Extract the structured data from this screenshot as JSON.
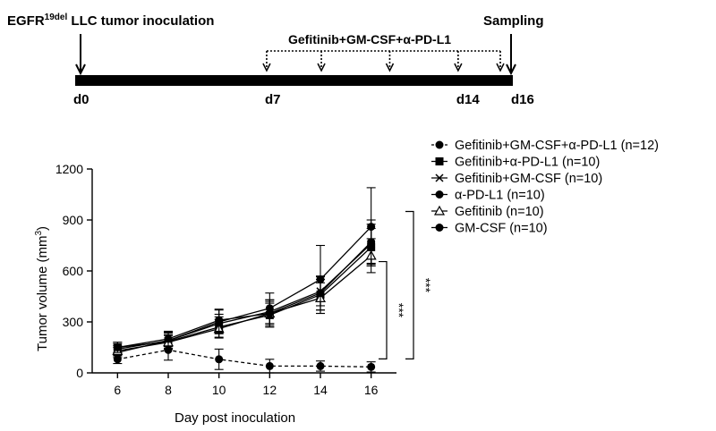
{
  "timeline": {
    "title_main": "EGFR",
    "title_sup": "19del",
    "title_rest": " LLC tumor inoculation",
    "sampling_label": "Sampling",
    "treatment_label": "Gefitinib+GM-CSF+α-PD-L1",
    "day_labels": [
      "d0",
      "d7",
      "d14",
      "d16"
    ],
    "day_values": [
      0,
      7,
      14,
      16
    ],
    "treatment_days": [
      7,
      9,
      11.5,
      14,
      16
    ],
    "inoculation_day": 0,
    "sampling_day": 16
  },
  "chart_data": {
    "type": "line",
    "title": "",
    "xlabel": "Day post inoculation",
    "ylabel_main": "Tumor volume (mm",
    "ylabel_sup": "3",
    "ylabel_end": ")",
    "xlim": [
      5,
      17
    ],
    "ylim": [
      0,
      1200
    ],
    "x": [
      6,
      8,
      10,
      12,
      14,
      16
    ],
    "xticks": [
      6,
      8,
      10,
      12,
      14,
      16
    ],
    "yticks": [
      0,
      300,
      600,
      900,
      1200
    ],
    "legend_position": "top-right",
    "series": [
      {
        "name": "Gefitinib+GM-CSF+α-PD-L1 (n=12)",
        "marker": "circle",
        "dashed": true,
        "values": [
          80,
          135,
          80,
          40,
          40,
          35
        ],
        "errors": [
          25,
          60,
          60,
          40,
          30,
          30
        ]
      },
      {
        "name": "Gefitinib+α-PD-L1 (n=10)",
        "marker": "square",
        "dashed": false,
        "values": [
          150,
          185,
          270,
          340,
          460,
          740
        ],
        "errors": [
          30,
          40,
          60,
          70,
          90,
          110
        ]
      },
      {
        "name": "Gefitinib+GM-CSF (n=10)",
        "marker": "x",
        "dashed": false,
        "values": [
          120,
          190,
          290,
          360,
          480,
          760
        ],
        "errors": [
          30,
          45,
          55,
          70,
          85,
          115
        ]
      },
      {
        "name": "α-PD-L1 (n=10)",
        "marker": "circle",
        "dashed": false,
        "values": [
          140,
          190,
          300,
          380,
          550,
          860
        ],
        "errors": [
          30,
          50,
          70,
          90,
          200,
          230
        ]
      },
      {
        "name": "Gefitinib (n=10)",
        "marker": "triangle",
        "dashed": false,
        "values": [
          130,
          180,
          260,
          350,
          440,
          690
        ],
        "errors": [
          30,
          40,
          55,
          70,
          90,
          100
        ]
      },
      {
        "name": "GM-CSF (n=10)",
        "marker": "circle",
        "dashed": false,
        "values": [
          150,
          200,
          310,
          350,
          470,
          770
        ],
        "errors": [
          30,
          45,
          65,
          80,
          100,
          130
        ]
      }
    ],
    "significance": [
      {
        "label": "***",
        "from_series": 0,
        "to_series": 1
      },
      {
        "label": "***",
        "from_series": 0,
        "to_series": 3
      }
    ]
  }
}
